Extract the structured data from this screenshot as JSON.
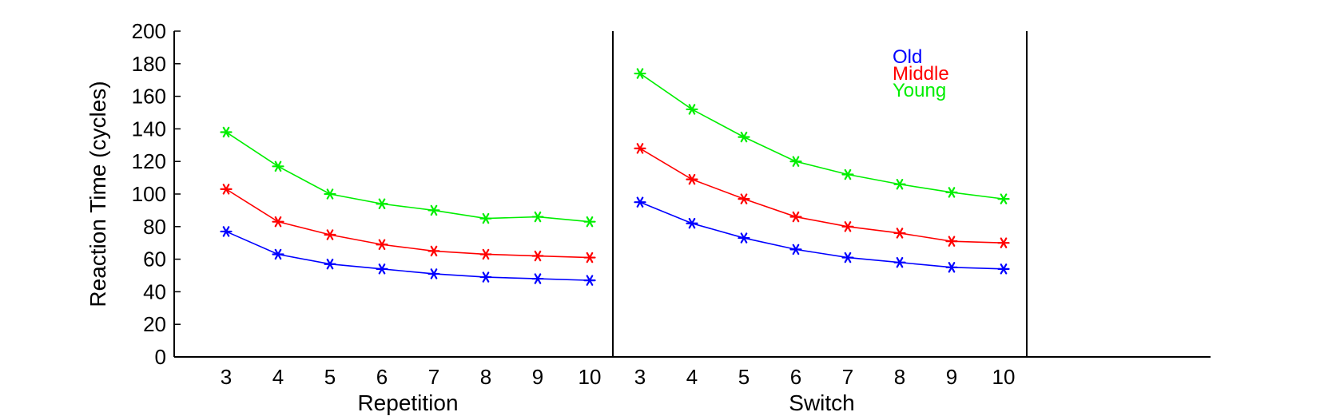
{
  "chart_data": {
    "type": "line",
    "title": "",
    "ylabel": "Reaction Time (cycles)",
    "ylim": [
      0,
      200
    ],
    "yticks": [
      0,
      20,
      40,
      60,
      80,
      100,
      120,
      140,
      160,
      180,
      200
    ],
    "x": [
      3,
      4,
      5,
      6,
      7,
      8,
      9,
      10
    ],
    "marker": "asterisk",
    "grid": false,
    "legend_position": "top-right (inside Switch panel)",
    "panels": [
      {
        "xlabel": "Repetition",
        "series": [
          {
            "name": "Old",
            "color": "#0000ff",
            "values": [
              77,
              63,
              57,
              54,
              51,
              49,
              48,
              47
            ]
          },
          {
            "name": "Middle",
            "color": "#ff0000",
            "values": [
              103,
              83,
              75,
              69,
              65,
              63,
              62,
              61
            ]
          },
          {
            "name": "Young",
            "color": "#00ee00",
            "values": [
              138,
              117,
              100,
              94,
              90,
              85,
              86,
              83
            ]
          }
        ]
      },
      {
        "xlabel": "Switch",
        "series": [
          {
            "name": "Old",
            "color": "#0000ff",
            "values": [
              95,
              82,
              73,
              66,
              61,
              58,
              55,
              54
            ]
          },
          {
            "name": "Middle",
            "color": "#ff0000",
            "values": [
              128,
              109,
              97,
              86,
              80,
              76,
              71,
              70
            ]
          },
          {
            "name": "Young",
            "color": "#00ee00",
            "values": [
              174,
              152,
              135,
              120,
              112,
              106,
              101,
              97
            ]
          }
        ]
      }
    ],
    "legend": [
      {
        "label": "Old",
        "color": "#0000ff"
      },
      {
        "label": "Middle",
        "color": "#ff0000"
      },
      {
        "label": "Young",
        "color": "#00ee00"
      }
    ]
  }
}
